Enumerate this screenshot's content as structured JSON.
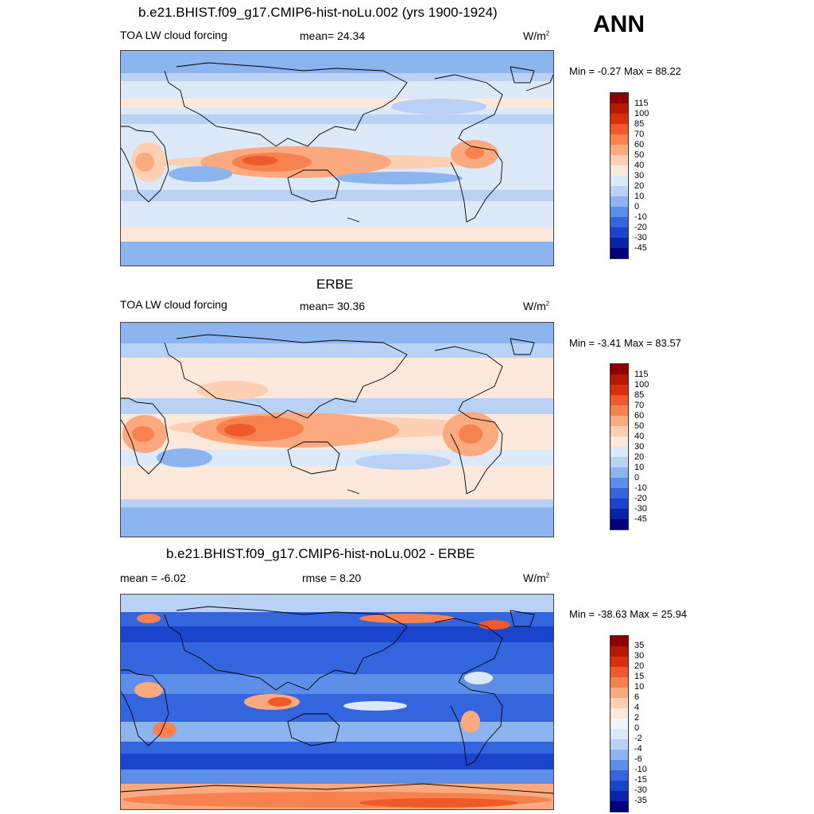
{
  "season": "ANN",
  "panels": [
    {
      "title": "b.e21.BHIST.f09_g17.CMIP6-hist-noLu.002 (yrs 1900-1924)",
      "left_label": "TOA LW cloud forcing",
      "mid_label": "mean=  24.34",
      "unit": "W/m",
      "unit_sup": "2",
      "minmax": "Min =  -0.27 Max =  88.22",
      "colorbar_labels": [
        "115",
        "100",
        "85",
        "70",
        "60",
        "50",
        "40",
        "30",
        "20",
        "10",
        "0",
        "-10",
        "-20",
        "-30",
        "-45"
      ]
    },
    {
      "title": "ERBE",
      "left_label": "TOA LW cloud forcing",
      "mid_label": "mean=  30.36",
      "unit": "W/m",
      "unit_sup": "2",
      "minmax": "Min =  -3.41 Max =  83.57",
      "colorbar_labels": [
        "115",
        "100",
        "85",
        "70",
        "60",
        "50",
        "40",
        "30",
        "20",
        "10",
        "0",
        "-10",
        "-20",
        "-30",
        "-45"
      ]
    },
    {
      "title": "b.e21.BHIST.f09_g17.CMIP6-hist-noLu.002 - ERBE",
      "left_label": "mean =  -6.02",
      "mid_label": "rmse =   8.20",
      "unit": "W/m",
      "unit_sup": "2",
      "minmax": "Min = -38.63 Max =  25.94",
      "colorbar_labels": [
        "35",
        "30",
        "20",
        "15",
        "10",
        "6",
        "4",
        "2",
        "0",
        "-2",
        "-4",
        "-6",
        "-10",
        "-15",
        "-30",
        "-35"
      ]
    }
  ],
  "colors": {
    "ramp16": [
      "#8b0000",
      "#b31a00",
      "#d7300f",
      "#ef5a28",
      "#f7814f",
      "#fbaa80",
      "#fdd0b4",
      "#fde9dc",
      "#dce9f8",
      "#b8d1f4",
      "#8cb4ee",
      "#5d8ee8",
      "#3365df",
      "#1a44cc",
      "#0a22a5",
      "#00007f"
    ],
    "ramp17": [
      "#8b0000",
      "#b31a00",
      "#d7300f",
      "#ef5a28",
      "#f7814f",
      "#fbaa80",
      "#fdd0b4",
      "#fde9dc",
      "#f4f4fb",
      "#dce9f8",
      "#b8d1f4",
      "#8cb4ee",
      "#5d8ee8",
      "#3365df",
      "#1a44cc",
      "#0a22a5",
      "#00007f"
    ],
    "coast": "#000000"
  }
}
